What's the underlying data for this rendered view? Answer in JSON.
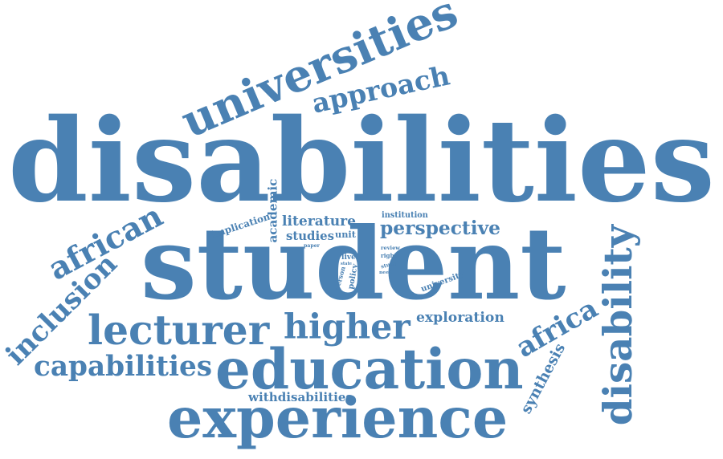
{
  "word_cloud": {
    "color": "#4a81b3",
    "words": [
      {
        "text": "disabilities",
        "orientation": "horizontal"
      },
      {
        "text": "student",
        "orientation": "horizontal"
      },
      {
        "text": "universities",
        "orientation": "rotated"
      },
      {
        "text": "approach",
        "orientation": "rotated"
      },
      {
        "text": "education",
        "orientation": "horizontal"
      },
      {
        "text": "experience",
        "orientation": "horizontal"
      },
      {
        "text": "lecturer",
        "orientation": "horizontal"
      },
      {
        "text": "higher",
        "orientation": "horizontal"
      },
      {
        "text": "capabilities",
        "orientation": "horizontal"
      },
      {
        "text": "inclusion",
        "orientation": "rotated"
      },
      {
        "text": "african",
        "orientation": "rotated"
      },
      {
        "text": "disability",
        "orientation": "vertical"
      },
      {
        "text": "africa",
        "orientation": "rotated"
      },
      {
        "text": "synthesis",
        "orientation": "rotated"
      },
      {
        "text": "exploration",
        "orientation": "horizontal"
      },
      {
        "text": "perspective",
        "orientation": "horizontal"
      },
      {
        "text": "literature",
        "orientation": "horizontal"
      },
      {
        "text": "studies",
        "orientation": "horizontal"
      },
      {
        "text": "unit",
        "orientation": "horizontal"
      },
      {
        "text": "academic",
        "orientation": "vertical"
      },
      {
        "text": "implication",
        "orientation": "rotated"
      },
      {
        "text": "institution",
        "orientation": "horizontal"
      },
      {
        "text": "withdisabilities",
        "orientation": "horizontal"
      },
      {
        "text": "university",
        "orientation": "rotated"
      },
      {
        "text": "live",
        "orientation": "horizontal"
      },
      {
        "text": "state",
        "orientation": "horizontal"
      },
      {
        "text": "policy",
        "orientation": "vertical"
      },
      {
        "text": "person",
        "orientation": "vertical"
      },
      {
        "text": "paper",
        "orientation": "horizontal"
      },
      {
        "text": "review",
        "orientation": "horizontal"
      },
      {
        "text": "right",
        "orientation": "horizontal"
      },
      {
        "text": "study",
        "orientation": "rotated"
      },
      {
        "text": "need",
        "orientation": "horizontal"
      }
    ]
  }
}
